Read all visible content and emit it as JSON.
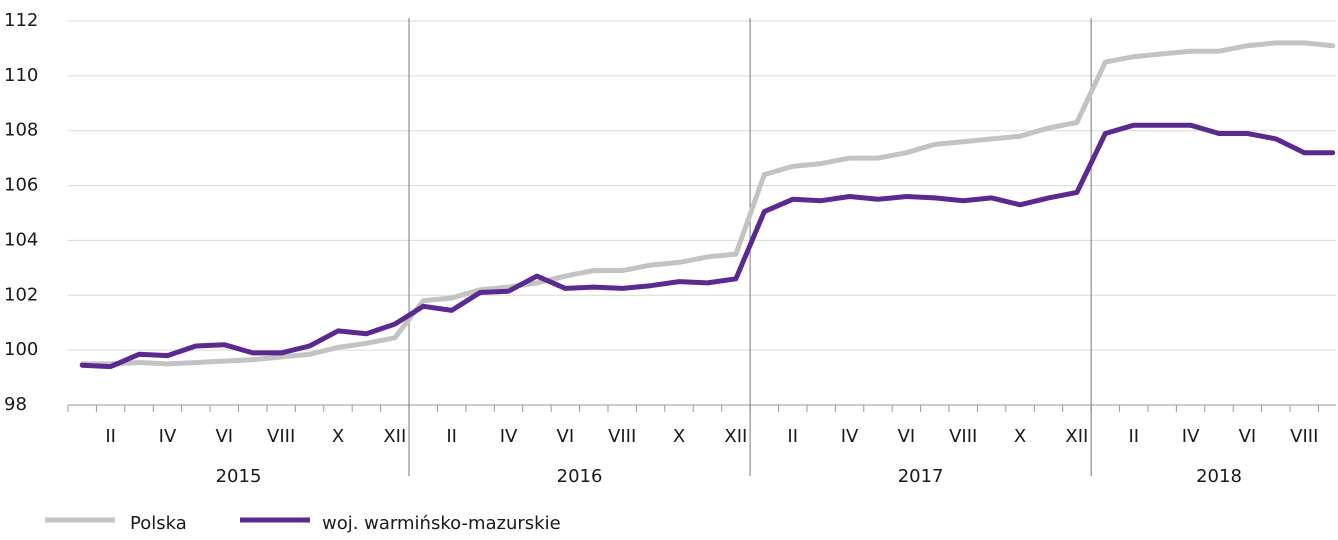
{
  "chart_data": {
    "type": "line",
    "categories": [
      null,
      "II",
      null,
      "IV",
      null,
      "VI",
      null,
      "VIII",
      null,
      "X",
      null,
      "XII",
      null,
      "II",
      null,
      "IV",
      null,
      "VI",
      null,
      "VIII",
      null,
      "X",
      null,
      "XII",
      null,
      "II",
      null,
      "IV",
      null,
      "VI",
      null,
      "VIII",
      null,
      "X",
      null,
      "XII",
      null,
      "II",
      null,
      "IV",
      null,
      "VI",
      null,
      "VIII",
      null
    ],
    "groups": [
      {
        "label": "2015",
        "size": 12
      },
      {
        "label": "2016",
        "size": 12
      },
      {
        "label": "2017",
        "size": 12
      },
      {
        "label": "2018",
        "size": 9
      }
    ],
    "series": [
      {
        "name": "Polska",
        "color": "#c3c3c3",
        "values": [
          99.5,
          99.5,
          99.55,
          99.5,
          99.55,
          99.6,
          99.65,
          99.75,
          99.85,
          100.1,
          100.25,
          100.45,
          101.8,
          101.9,
          102.2,
          102.3,
          102.45,
          102.7,
          102.9,
          102.9,
          103.1,
          103.2,
          103.4,
          103.5,
          106.4,
          106.7,
          106.8,
          107.0,
          107.0,
          107.2,
          107.5,
          107.6,
          107.7,
          107.8,
          108.1,
          108.3,
          110.5,
          110.7,
          110.8,
          110.9,
          110.9,
          111.1,
          111.2,
          111.2,
          111.1
        ]
      },
      {
        "name": "woj. warmińsko-mazurskie",
        "color": "#5b2a91",
        "values": [
          99.45,
          99.4,
          99.85,
          99.8,
          100.15,
          100.2,
          99.9,
          99.9,
          100.15,
          100.7,
          100.6,
          100.95,
          101.6,
          101.45,
          102.1,
          102.15,
          102.7,
          102.25,
          102.3,
          102.25,
          102.35,
          102.5,
          102.45,
          102.6,
          105.05,
          105.5,
          105.45,
          105.6,
          105.5,
          105.6,
          105.55,
          105.45,
          105.55,
          105.3,
          105.55,
          105.75,
          107.9,
          108.2,
          108.2,
          108.2,
          107.9,
          107.9,
          107.7,
          107.2,
          107.2
        ]
      }
    ],
    "ylim": [
      98,
      112
    ],
    "yticks": [
      98,
      100,
      102,
      104,
      106,
      108,
      110,
      112
    ],
    "grid": true,
    "legend": "bottom"
  }
}
